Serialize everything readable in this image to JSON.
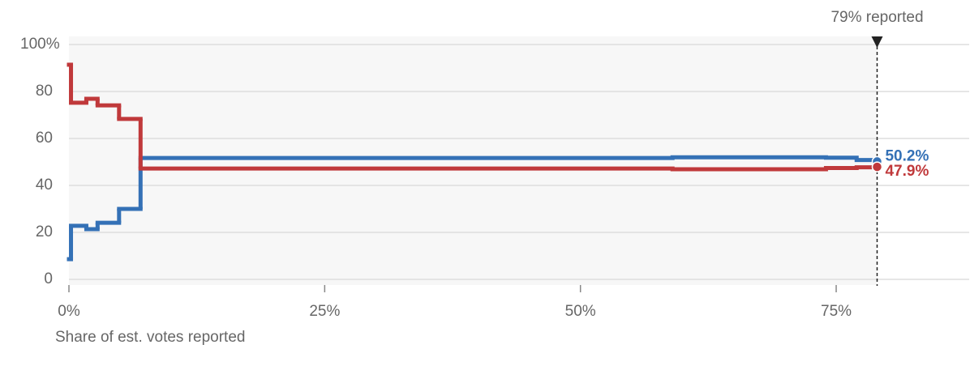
{
  "chart_data": {
    "type": "step",
    "x_label": "Share of est. votes reported",
    "x": [
      0,
      0.2,
      1.7,
      2.8,
      4.9,
      7.0,
      59,
      74,
      77,
      79
    ],
    "series": [
      {
        "color": "#3471b6",
        "values": [
          8.6,
          22.8,
          21.4,
          24.1,
          30.0,
          51.7,
          52.0,
          51.8,
          50.8,
          50.2
        ],
        "value_labels": [
          null,
          null,
          null,
          null,
          null,
          null,
          null,
          null,
          null,
          "50.2%"
        ]
      },
      {
        "color": "#c0393b",
        "values": [
          91.4,
          75.2,
          76.9,
          74.1,
          68.3,
          47.2,
          46.9,
          47.4,
          47.7,
          47.9
        ],
        "value_labels": [
          null,
          null,
          null,
          null,
          null,
          null,
          null,
          null,
          null,
          "47.9%"
        ]
      }
    ],
    "annotation": {
      "x": 79,
      "label": "79% reported"
    },
    "xlim": [
      0,
      88
    ],
    "ylim": [
      0,
      100
    ],
    "xticks": [
      {
        "value": 0,
        "label": "0%"
      },
      {
        "value": 25,
        "label": "25%"
      },
      {
        "value": 50,
        "label": "50%"
      },
      {
        "value": 75,
        "label": "75%"
      }
    ],
    "yticks": [
      0,
      20,
      40,
      60,
      80,
      {
        "value": 100,
        "label": "100%"
      }
    ],
    "grid": true
  }
}
